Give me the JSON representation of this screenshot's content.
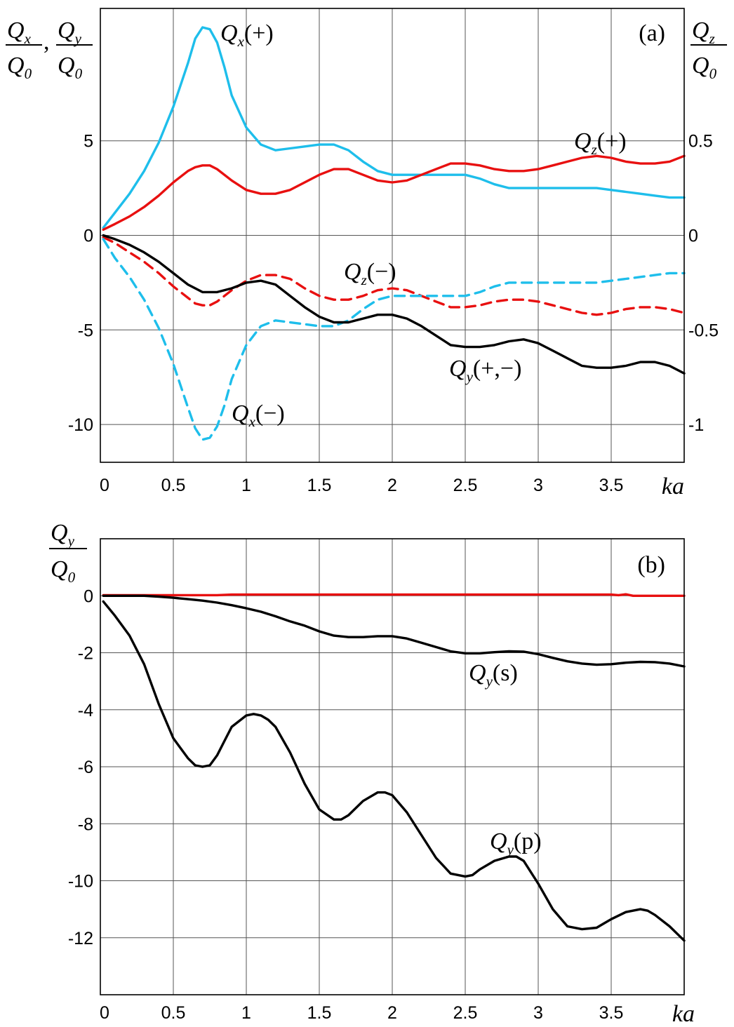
{
  "chart_data": [
    {
      "type": "line",
      "panel_label": "(a)",
      "xlabel": "ka",
      "ylabel_left": {
        "num_base": "Q",
        "num_sub": "x",
        "den_base": "Q",
        "den_sub": "0",
        "num2_base": "Q",
        "num2_sub": "y",
        "den2_base": "Q",
        "den2_sub": "0"
      },
      "ylabel_right": {
        "num_base": "Q",
        "num_sub": "z",
        "den_base": "Q",
        "den_sub": "0"
      },
      "xlim": [
        0,
        4
      ],
      "ylim_left": [
        -12,
        12
      ],
      "ylim_right": [
        -1.2,
        1.2
      ],
      "x_ticks": [
        "0",
        "0.5",
        "1",
        "1.5",
        "2",
        "2.5",
        "3",
        "3.5"
      ],
      "y_ticks_left": [
        "5",
        "0",
        "-5",
        "-10"
      ],
      "y_ticks_right": [
        "0.5",
        "0",
        "-0.5",
        "-1"
      ],
      "grid": true,
      "series": [
        {
          "name": "Q_x(+)",
          "color": "#1ebeeb",
          "dash": "solid",
          "axis": "left",
          "x": [
            0.02,
            0.1,
            0.2,
            0.3,
            0.4,
            0.5,
            0.6,
            0.65,
            0.7,
            0.75,
            0.8,
            0.85,
            0.9,
            1.0,
            1.1,
            1.2,
            1.3,
            1.4,
            1.5,
            1.6,
            1.7,
            1.8,
            1.9,
            2.0,
            2.1,
            2.2,
            2.3,
            2.4,
            2.5,
            2.6,
            2.7,
            2.8,
            2.9,
            3.0,
            3.1,
            3.2,
            3.3,
            3.4,
            3.5,
            3.6,
            3.7,
            3.8,
            3.9,
            4.0
          ],
          "y": [
            0.4,
            1.2,
            2.2,
            3.4,
            4.9,
            6.8,
            9.1,
            10.4,
            11.0,
            10.9,
            10.2,
            8.9,
            7.4,
            5.7,
            4.8,
            4.5,
            4.6,
            4.7,
            4.8,
            4.8,
            4.5,
            3.9,
            3.4,
            3.2,
            3.2,
            3.2,
            3.2,
            3.2,
            3.2,
            3.0,
            2.7,
            2.5,
            2.5,
            2.5,
            2.5,
            2.5,
            2.5,
            2.5,
            2.4,
            2.3,
            2.2,
            2.1,
            2.0,
            2.0
          ]
        },
        {
          "name": "Q_z(+)",
          "color": "#e81010",
          "dash": "solid",
          "axis": "right",
          "x": [
            0.02,
            0.1,
            0.2,
            0.3,
            0.4,
            0.5,
            0.6,
            0.65,
            0.7,
            0.75,
            0.8,
            0.9,
            1.0,
            1.1,
            1.2,
            1.3,
            1.4,
            1.5,
            1.6,
            1.7,
            1.8,
            1.9,
            2.0,
            2.1,
            2.2,
            2.3,
            2.4,
            2.5,
            2.6,
            2.7,
            2.8,
            2.9,
            3.0,
            3.1,
            3.2,
            3.3,
            3.4,
            3.5,
            3.6,
            3.7,
            3.8,
            3.9,
            4.0
          ],
          "y": [
            0.03,
            0.06,
            0.1,
            0.15,
            0.21,
            0.28,
            0.34,
            0.36,
            0.37,
            0.37,
            0.35,
            0.29,
            0.24,
            0.22,
            0.22,
            0.24,
            0.28,
            0.32,
            0.35,
            0.35,
            0.32,
            0.29,
            0.28,
            0.29,
            0.32,
            0.35,
            0.38,
            0.38,
            0.37,
            0.35,
            0.34,
            0.34,
            0.35,
            0.37,
            0.39,
            0.41,
            0.42,
            0.41,
            0.39,
            0.38,
            0.38,
            0.39,
            0.42
          ]
        },
        {
          "name": "Q_z(−)",
          "color": "#e81010",
          "dash": "dashed",
          "axis": "right",
          "x": [
            0.02,
            0.1,
            0.2,
            0.3,
            0.4,
            0.5,
            0.6,
            0.65,
            0.7,
            0.75,
            0.8,
            0.9,
            1.0,
            1.1,
            1.2,
            1.3,
            1.4,
            1.5,
            1.6,
            1.7,
            1.8,
            1.9,
            2.0,
            2.1,
            2.2,
            2.3,
            2.4,
            2.5,
            2.6,
            2.7,
            2.8,
            2.9,
            3.0,
            3.1,
            3.2,
            3.3,
            3.4,
            3.5,
            3.6,
            3.7,
            3.8,
            3.9,
            4.0
          ],
          "y": [
            -0.01,
            -0.04,
            -0.09,
            -0.14,
            -0.2,
            -0.27,
            -0.33,
            -0.36,
            -0.37,
            -0.37,
            -0.35,
            -0.29,
            -0.24,
            -0.21,
            -0.21,
            -0.23,
            -0.28,
            -0.32,
            -0.34,
            -0.34,
            -0.32,
            -0.29,
            -0.28,
            -0.29,
            -0.32,
            -0.35,
            -0.38,
            -0.38,
            -0.37,
            -0.35,
            -0.34,
            -0.34,
            -0.35,
            -0.37,
            -0.39,
            -0.41,
            -0.42,
            -0.41,
            -0.39,
            -0.38,
            -0.38,
            -0.39,
            -0.41
          ]
        },
        {
          "name": "Q_x(−)",
          "color": "#1ebeeb",
          "dash": "dashed",
          "axis": "left",
          "x": [
            0.02,
            0.1,
            0.2,
            0.3,
            0.4,
            0.5,
            0.6,
            0.65,
            0.7,
            0.75,
            0.8,
            0.85,
            0.9,
            1.0,
            1.1,
            1.2,
            1.3,
            1.4,
            1.5,
            1.6,
            1.7,
            1.8,
            1.9,
            2.0,
            2.1,
            2.2,
            2.3,
            2.4,
            2.5,
            2.6,
            2.7,
            2.8,
            2.9,
            3.0,
            3.1,
            3.2,
            3.3,
            3.4,
            3.5,
            3.6,
            3.7,
            3.8,
            3.9,
            4.0
          ],
          "y": [
            -0.2,
            -1.2,
            -2.2,
            -3.4,
            -4.9,
            -6.8,
            -9.1,
            -10.2,
            -10.8,
            -10.7,
            -10.1,
            -9.0,
            -7.6,
            -5.8,
            -4.8,
            -4.5,
            -4.6,
            -4.7,
            -4.8,
            -4.8,
            -4.5,
            -3.9,
            -3.4,
            -3.2,
            -3.2,
            -3.2,
            -3.2,
            -3.2,
            -3.2,
            -3.0,
            -2.7,
            -2.5,
            -2.5,
            -2.5,
            -2.5,
            -2.5,
            -2.5,
            -2.5,
            -2.4,
            -2.3,
            -2.2,
            -2.1,
            -2.0,
            -2.0
          ]
        },
        {
          "name": "Q_y(+,−)",
          "color": "#000000",
          "dash": "solid",
          "axis": "left",
          "x": [
            0.02,
            0.1,
            0.2,
            0.3,
            0.4,
            0.5,
            0.6,
            0.7,
            0.75,
            0.8,
            0.9,
            1.0,
            1.1,
            1.2,
            1.3,
            1.4,
            1.5,
            1.6,
            1.7,
            1.8,
            1.9,
            2.0,
            2.1,
            2.2,
            2.3,
            2.4,
            2.5,
            2.6,
            2.7,
            2.8,
            2.9,
            3.0,
            3.1,
            3.2,
            3.3,
            3.4,
            3.5,
            3.6,
            3.7,
            3.8,
            3.9,
            4.0
          ],
          "y": [
            0.0,
            -0.2,
            -0.5,
            -0.9,
            -1.4,
            -2.0,
            -2.6,
            -3.0,
            -3.0,
            -3.0,
            -2.8,
            -2.5,
            -2.4,
            -2.6,
            -3.2,
            -3.8,
            -4.3,
            -4.6,
            -4.6,
            -4.4,
            -4.2,
            -4.2,
            -4.4,
            -4.8,
            -5.3,
            -5.8,
            -5.9,
            -5.9,
            -5.8,
            -5.6,
            -5.5,
            -5.7,
            -6.1,
            -6.5,
            -6.9,
            -7.0,
            -7.0,
            -6.9,
            -6.7,
            -6.7,
            -6.9,
            -7.3
          ]
        }
      ],
      "annotations": [
        {
          "base": "Q",
          "sub": "x",
          "suffix": "(+)"
        },
        {
          "base": "Q",
          "sub": "z",
          "suffix": "(+)"
        },
        {
          "base": "Q",
          "sub": "z",
          "suffix": "(−)"
        },
        {
          "base": "Q",
          "sub": "y",
          "suffix": "(+,−)"
        },
        {
          "base": "Q",
          "sub": "x",
          "suffix": "(−)"
        }
      ]
    },
    {
      "type": "line",
      "panel_label": "(b)",
      "xlabel": "ka",
      "ylabel_left": {
        "num_base": "Q",
        "num_sub": "y",
        "den_base": "Q",
        "den_sub": "0"
      },
      "xlim": [
        0,
        4
      ],
      "ylim": [
        -14,
        2
      ],
      "x_ticks": [
        "0",
        "0.5",
        "1",
        "1.5",
        "2",
        "2.5",
        "3",
        "3.5"
      ],
      "y_ticks": [
        "0",
        "-2",
        "-4",
        "-6",
        "-8",
        "-10",
        "-12"
      ],
      "grid": true,
      "series": [
        {
          "name": "",
          "color": "#e81010",
          "dash": "solid",
          "x": [
            0.02,
            0.5,
            0.8,
            0.9,
            1.0,
            2.0,
            3.0,
            3.5,
            3.55,
            3.6,
            3.65,
            3.7,
            4.0
          ],
          "y": [
            0.02,
            0.02,
            0.02,
            0.04,
            0.04,
            0.04,
            0.04,
            0.04,
            0.02,
            0.05,
            0.0,
            0.0,
            0.0
          ]
        },
        {
          "name": "Q_y(s)",
          "color": "#000000",
          "dash": "solid",
          "x": [
            0.02,
            0.1,
            0.2,
            0.3,
            0.4,
            0.5,
            0.6,
            0.7,
            0.8,
            0.9,
            1.0,
            1.1,
            1.2,
            1.3,
            1.4,
            1.5,
            1.6,
            1.7,
            1.8,
            1.9,
            2.0,
            2.1,
            2.2,
            2.3,
            2.4,
            2.5,
            2.6,
            2.7,
            2.8,
            2.9,
            3.0,
            3.1,
            3.2,
            3.3,
            3.4,
            3.5,
            3.6,
            3.7,
            3.8,
            3.9,
            4.0
          ],
          "y": [
            0.0,
            0.0,
            0.0,
            0.0,
            -0.03,
            -0.07,
            -0.12,
            -0.17,
            -0.24,
            -0.33,
            -0.44,
            -0.56,
            -0.72,
            -0.9,
            -1.05,
            -1.25,
            -1.4,
            -1.45,
            -1.45,
            -1.42,
            -1.42,
            -1.5,
            -1.65,
            -1.8,
            -1.95,
            -2.02,
            -2.02,
            -1.98,
            -1.95,
            -1.96,
            -2.05,
            -2.18,
            -2.3,
            -2.38,
            -2.42,
            -2.4,
            -2.35,
            -2.32,
            -2.33,
            -2.38,
            -2.48
          ]
        },
        {
          "name": "Q_y(p)",
          "color": "#000000",
          "dash": "solid",
          "x": [
            0.02,
            0.1,
            0.2,
            0.3,
            0.4,
            0.5,
            0.6,
            0.65,
            0.7,
            0.75,
            0.8,
            0.85,
            0.9,
            1.0,
            1.05,
            1.1,
            1.15,
            1.2,
            1.3,
            1.4,
            1.5,
            1.6,
            1.65,
            1.7,
            1.8,
            1.9,
            1.95,
            2.0,
            2.1,
            2.2,
            2.3,
            2.4,
            2.5,
            2.55,
            2.6,
            2.7,
            2.8,
            2.85,
            2.9,
            3.0,
            3.1,
            3.2,
            3.3,
            3.4,
            3.45,
            3.5,
            3.6,
            3.7,
            3.75,
            3.8,
            3.9,
            4.0
          ],
          "y": [
            -0.2,
            -0.7,
            -1.4,
            -2.4,
            -3.8,
            -5.0,
            -5.7,
            -5.95,
            -6.0,
            -5.95,
            -5.6,
            -5.1,
            -4.6,
            -4.2,
            -4.15,
            -4.2,
            -4.35,
            -4.6,
            -5.5,
            -6.6,
            -7.5,
            -7.85,
            -7.85,
            -7.7,
            -7.2,
            -6.9,
            -6.9,
            -7.0,
            -7.6,
            -8.4,
            -9.2,
            -9.75,
            -9.85,
            -9.8,
            -9.6,
            -9.3,
            -9.15,
            -9.15,
            -9.3,
            -10.1,
            -11.0,
            -11.6,
            -11.7,
            -11.65,
            -11.5,
            -11.35,
            -11.1,
            -11.0,
            -11.05,
            -11.2,
            -11.6,
            -12.1
          ]
        }
      ],
      "annotations": [
        {
          "base": "Q",
          "sub": "y",
          "suffix": "(s)"
        },
        {
          "base": "Q",
          "sub": "y",
          "suffix": "(p)"
        }
      ]
    }
  ]
}
